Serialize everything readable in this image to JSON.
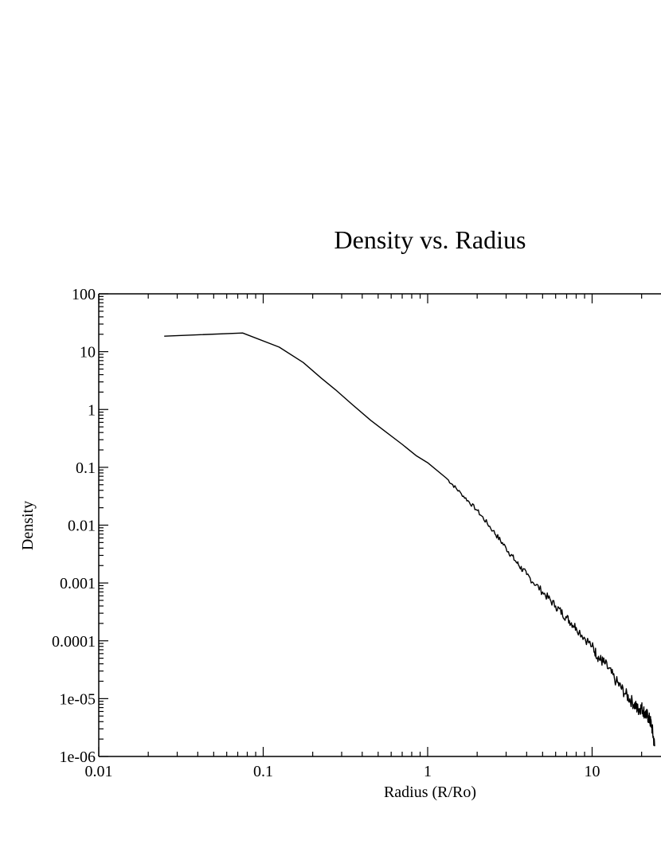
{
  "chart_data": {
    "type": "line",
    "title": "Density vs. Radius",
    "xlabel": "Radius (R/Ro)",
    "ylabel": "Density",
    "xscale": "log",
    "yscale": "log",
    "xlim": [
      0.01,
      24
    ],
    "ylim": [
      1e-06,
      100
    ],
    "grid": false,
    "xticks": [
      {
        "value": 0.01,
        "label": "0.01"
      },
      {
        "value": 0.1,
        "label": "0.1"
      },
      {
        "value": 1,
        "label": "1"
      },
      {
        "value": 10,
        "label": "10"
      }
    ],
    "yticks": [
      {
        "value": 100,
        "label": "100"
      },
      {
        "value": 10,
        "label": "10"
      },
      {
        "value": 1,
        "label": "1"
      },
      {
        "value": 0.1,
        "label": "0.1"
      },
      {
        "value": 0.01,
        "label": "0.01"
      },
      {
        "value": 0.001,
        "label": "0.001"
      },
      {
        "value": 0.0001,
        "label": "0.0001"
      },
      {
        "value": 1e-05,
        "label": "1e-05"
      },
      {
        "value": 1e-06,
        "label": "1e-06"
      }
    ],
    "series": [
      {
        "color": "#000000",
        "x": [
          0.025,
          0.075,
          0.125,
          0.175,
          0.225,
          0.275,
          0.35,
          0.45,
          0.55,
          0.7,
          0.85,
          1.0,
          1.3,
          1.6,
          2.0,
          2.5,
          3.0,
          3.5,
          4.0,
          5.0,
          6.0,
          7.0,
          8.0,
          10.0,
          11.0,
          12.0,
          14.0,
          16.0,
          18.0,
          19.0,
          20.0,
          21.0,
          22.0,
          23.0,
          24.0
        ],
        "y": [
          18.5,
          21.0,
          12.0,
          6.5,
          3.5,
          2.2,
          1.2,
          0.65,
          0.42,
          0.25,
          0.16,
          0.12,
          0.065,
          0.035,
          0.018,
          0.008,
          0.004,
          0.0022,
          0.0014,
          0.0007,
          0.0004,
          0.00025,
          0.00017,
          8e-05,
          5e-05,
          4e-05,
          2e-05,
          1.2e-05,
          8e-06,
          6.5e-06,
          7e-06,
          5.5e-06,
          4.8e-06,
          3.5e-06,
          1.5e-06
        ]
      }
    ]
  }
}
